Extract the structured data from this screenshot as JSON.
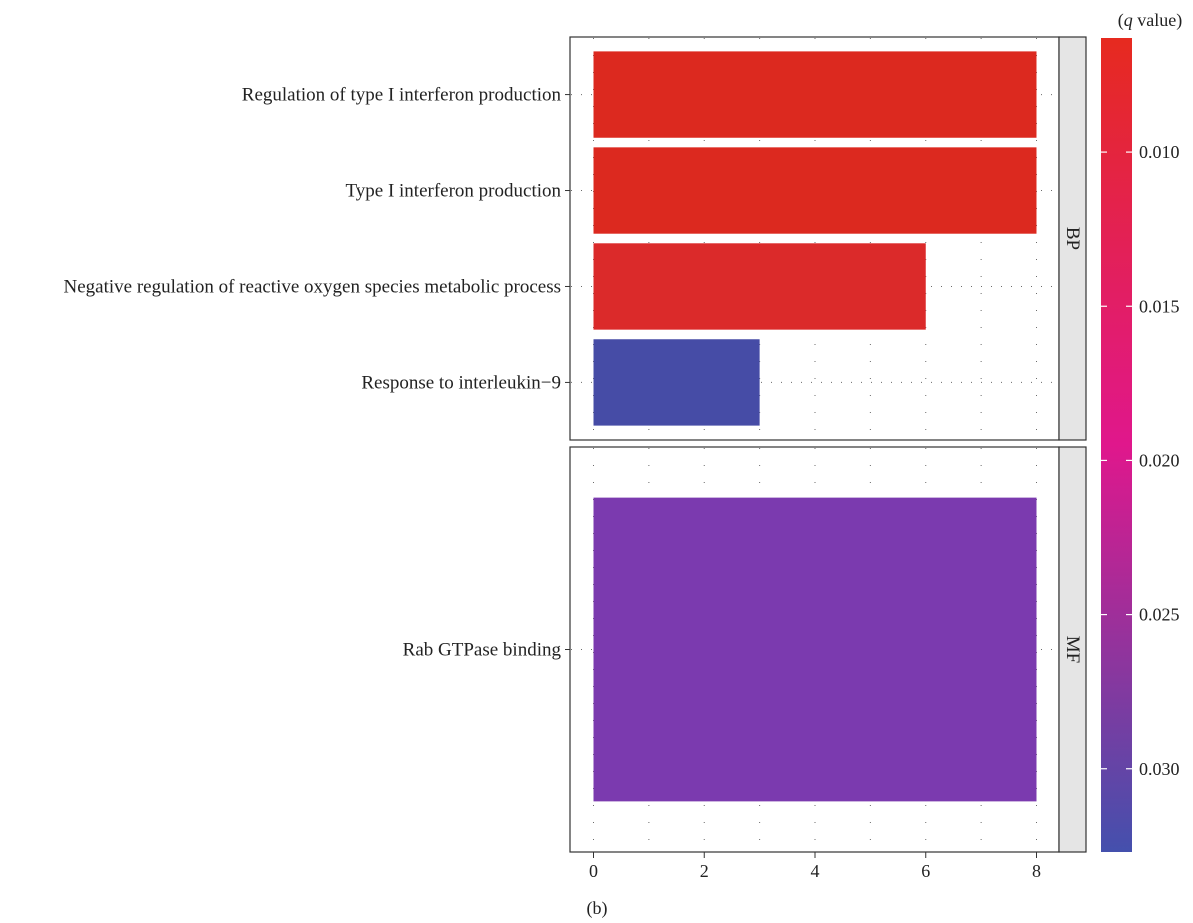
{
  "chart_data": {
    "type": "bar",
    "orientation": "horizontal",
    "caption": "(b)",
    "x_axis": {
      "ticks": [
        0,
        2,
        4,
        6,
        8
      ],
      "xlim": [
        -0.5,
        8.5
      ]
    },
    "colorbar": {
      "title_italic": "q",
      "title_rest": " value",
      "ticks": [
        0.01,
        0.015,
        0.02,
        0.025,
        0.03
      ],
      "tick_labels": [
        "0.010",
        "0.015",
        "0.020",
        "0.025",
        "0.030"
      ],
      "range": [
        0.0063,
        0.0327
      ],
      "low_color": "#e62a1f",
      "mid_color": "#e0178c",
      "high_color": "#4450ad"
    },
    "panels": [
      {
        "strip": "BP",
        "bars": [
          {
            "category": "Regulation of type I interferon production",
            "value": 8,
            "q_value": 0.0085,
            "color": "#dc291f"
          },
          {
            "category": "Type I interferon production",
            "value": 8,
            "q_value": 0.0085,
            "color": "#dc291f"
          },
          {
            "category": "Negative regulation of reactive oxygen species metabolic process",
            "value": 6,
            "q_value": 0.009,
            "color": "#db2a2a"
          },
          {
            "category": "Response to interleukin−9",
            "value": 3,
            "q_value": 0.0325,
            "color": "#464ca6"
          }
        ]
      },
      {
        "strip": "MF",
        "bars": [
          {
            "category": "Rab GTPase binding",
            "value": 8,
            "q_value": 0.029,
            "color": "#7b3aaf"
          }
        ]
      }
    ]
  }
}
